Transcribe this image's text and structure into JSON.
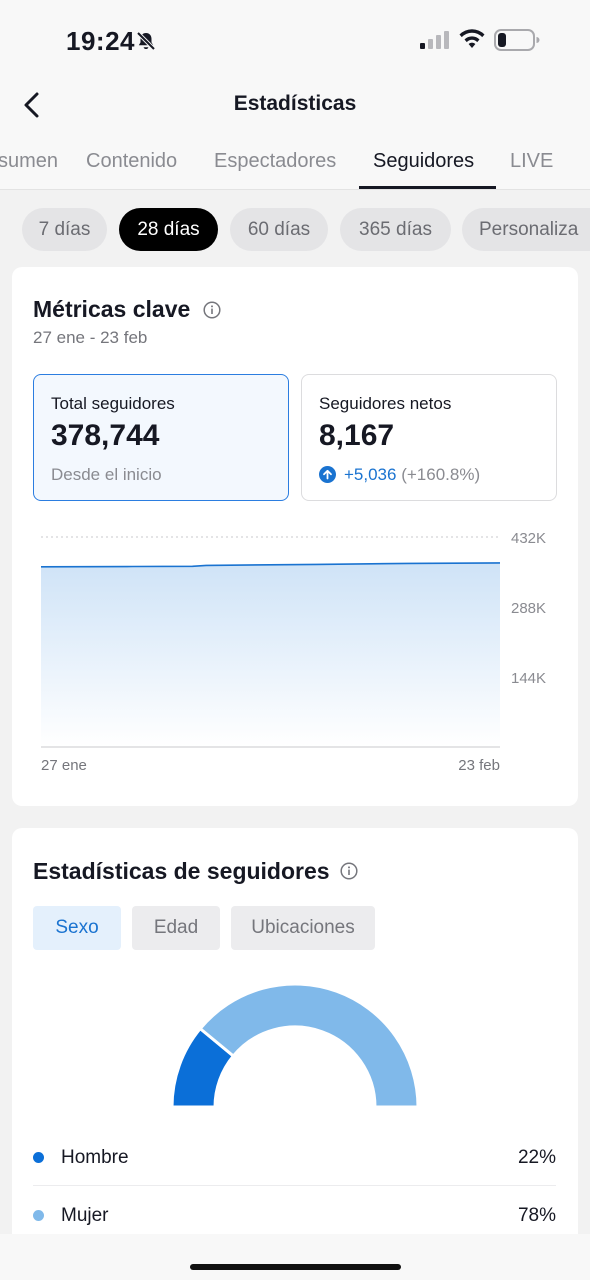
{
  "status_bar": {
    "time": "19:24"
  },
  "nav": {
    "title": "Estadísticas"
  },
  "tabs": [
    {
      "label": "sumen"
    },
    {
      "label": "Contenido"
    },
    {
      "label": "Espectadores"
    },
    {
      "label": "Seguidores"
    },
    {
      "label": "LIVE"
    }
  ],
  "active_tab": "Seguidores",
  "date_filters": [
    {
      "label": "7 días"
    },
    {
      "label": "28 días"
    },
    {
      "label": "60 días"
    },
    {
      "label": "365 días"
    },
    {
      "label": "Personaliza"
    }
  ],
  "active_filter": "28 días",
  "key_metrics": {
    "title": "Métricas clave",
    "date_range": "27 ene - 23 feb",
    "total": {
      "label": "Total seguidores",
      "value": "378,744",
      "sub": "Desde el inicio"
    },
    "net": {
      "label": "Seguidores netos",
      "value": "8,167",
      "change": "+5,036",
      "change_pct": "(+160.8%)"
    }
  },
  "chart_data": {
    "type": "area",
    "x": [
      "27 ene",
      "23 feb"
    ],
    "x_tick_labels": [
      "27 ene",
      "23 feb"
    ],
    "y_tick_labels": [
      "432K",
      "288K",
      "144K"
    ],
    "ylim": [
      0,
      432000
    ],
    "points": [
      {
        "t": 0.0,
        "y": 370600
      },
      {
        "t": 0.2,
        "y": 371300
      },
      {
        "t": 0.33,
        "y": 371700
      },
      {
        "t": 0.36,
        "y": 373600
      },
      {
        "t": 0.6,
        "y": 375600
      },
      {
        "t": 0.8,
        "y": 377600
      },
      {
        "t": 1.0,
        "y": 378744
      }
    ],
    "color": "#1a73d0",
    "fill_color": "#cfe3f7",
    "grid": true
  },
  "follower_stats": {
    "title": "Estadísticas de seguidores",
    "segments": [
      {
        "label": "Sexo"
      },
      {
        "label": "Edad"
      },
      {
        "label": "Ubicaciones"
      }
    ],
    "active_segment": "Sexo",
    "gender": [
      {
        "label": "Hombre",
        "value": "22%",
        "pct": 22,
        "color": "#0b6fd8"
      },
      {
        "label": "Mujer",
        "value": "78%",
        "pct": 78,
        "color": "#80b9ea"
      }
    ]
  }
}
